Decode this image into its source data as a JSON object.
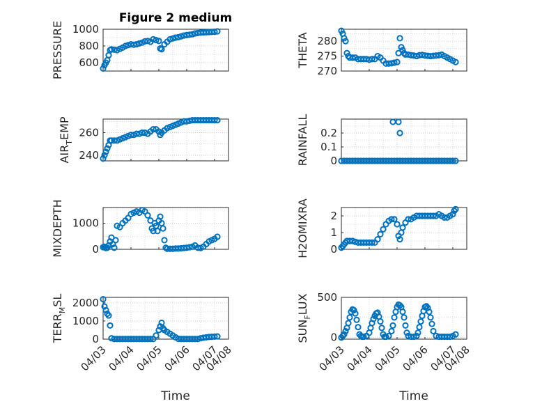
{
  "chart_data": [
    {
      "type": "scatter",
      "title": "Figure 2 medium",
      "ylabel": "PRESSURE",
      "ylim": [
        500,
        1000
      ],
      "yticks": [
        "600",
        "800",
        "1000"
      ],
      "xlim": [
        0,
        4.5
      ],
      "x": [
        0,
        0.05,
        0.1,
        0.15,
        0.2,
        0.25,
        0.3,
        0.4,
        0.5,
        0.6,
        0.7,
        0.8,
        0.9,
        1.0,
        1.1,
        1.2,
        1.3,
        1.4,
        1.5,
        1.6,
        1.7,
        1.8,
        1.9,
        2.0,
        2.05,
        2.1,
        2.2,
        2.3,
        2.4,
        2.5,
        2.6,
        2.7,
        2.8,
        2.9,
        3.0,
        3.1,
        3.2,
        3.3,
        3.4,
        3.5,
        3.6,
        3.7,
        3.8,
        3.9,
        4.0,
        4.1
      ],
      "y": [
        530,
        570,
        600,
        630,
        690,
        750,
        760,
        755,
        750,
        765,
        780,
        800,
        810,
        820,
        815,
        820,
        830,
        840,
        855,
        860,
        850,
        880,
        870,
        860,
        770,
        760,
        820,
        850,
        880,
        890,
        900,
        905,
        915,
        925,
        930,
        935,
        940,
        950,
        955,
        960,
        962,
        964,
        966,
        968,
        970,
        975
      ]
    },
    {
      "type": "scatter",
      "ylabel": "THETA",
      "ylim": [
        270,
        284
      ],
      "yticks": [
        "270",
        "275",
        "280"
      ],
      "xlim": [
        0,
        4.5
      ],
      "x": [
        0,
        0.05,
        0.1,
        0.15,
        0.2,
        0.25,
        0.3,
        0.4,
        0.5,
        0.6,
        0.7,
        0.8,
        0.9,
        1.0,
        1.1,
        1.2,
        1.3,
        1.4,
        1.5,
        1.6,
        1.7,
        1.8,
        1.9,
        2.0,
        2.05,
        2.1,
        2.15,
        2.2,
        2.25,
        2.3,
        2.4,
        2.5,
        2.6,
        2.7,
        2.8,
        2.9,
        3.0,
        3.1,
        3.2,
        3.3,
        3.4,
        3.5,
        3.6,
        3.7,
        3.8,
        3.9,
        4.0,
        4.1
      ],
      "y": [
        283.5,
        282.5,
        281,
        280,
        276,
        275,
        274.5,
        274.5,
        274.5,
        274,
        274,
        274,
        274,
        273.8,
        274,
        274,
        275,
        274.5,
        273.5,
        272.5,
        272.5,
        272.6,
        272.8,
        273,
        276,
        281,
        278,
        277,
        276,
        275.5,
        275.5,
        275.3,
        275.2,
        275,
        275.3,
        275.4,
        275.2,
        275.1,
        275,
        275.1,
        275.2,
        275.3,
        275.5,
        275,
        274.5,
        274,
        273.5,
        273
      ]
    },
    {
      "type": "scatter",
      "ylabel": "AIR_TEMP",
      "ylim": [
        235,
        272
      ],
      "yticks": [
        "240",
        "260"
      ],
      "xlim": [
        0,
        4.5
      ],
      "x": [
        0,
        0.05,
        0.1,
        0.15,
        0.2,
        0.25,
        0.3,
        0.4,
        0.5,
        0.6,
        0.7,
        0.8,
        0.9,
        1.0,
        1.1,
        1.2,
        1.3,
        1.4,
        1.5,
        1.6,
        1.7,
        1.8,
        1.9,
        2.0,
        2.05,
        2.1,
        2.2,
        2.3,
        2.4,
        2.5,
        2.6,
        2.7,
        2.8,
        2.9,
        3.0,
        3.1,
        3.2,
        3.3,
        3.4,
        3.5,
        3.6,
        3.7,
        3.8,
        3.9,
        4.0,
        4.1
      ],
      "y": [
        237,
        240,
        243,
        246,
        249,
        253,
        253,
        253,
        253,
        254,
        255,
        256,
        257,
        258,
        258,
        259,
        259,
        260,
        260,
        259,
        261,
        263,
        263,
        261,
        258,
        260,
        262,
        264,
        265,
        266,
        267,
        268,
        269,
        270,
        270,
        270.5,
        271,
        271,
        271,
        271,
        271,
        271,
        271,
        271,
        271,
        271
      ]
    },
    {
      "type": "scatter",
      "ylabel": "RAINFALL",
      "ylim": [
        0,
        0.3
      ],
      "yticks": [
        "0",
        "0.1",
        "0.2"
      ],
      "xlim": [
        0,
        4.5
      ],
      "x": [
        0,
        0.1,
        0.2,
        0.3,
        0.4,
        0.5,
        0.6,
        0.7,
        0.8,
        0.9,
        1.0,
        1.1,
        1.2,
        1.3,
        1.4,
        1.5,
        1.6,
        1.7,
        1.8,
        1.9,
        2.0,
        2.1,
        2.2,
        2.3,
        2.4,
        2.5,
        2.6,
        2.7,
        2.8,
        2.9,
        3.0,
        3.1,
        3.2,
        3.3,
        3.4,
        3.5,
        3.6,
        3.7,
        3.8,
        3.9,
        4.0,
        4.1,
        1.85,
        2.05,
        2.1
      ],
      "y": [
        0,
        0,
        0,
        0,
        0,
        0,
        0,
        0,
        0,
        0,
        0,
        0,
        0,
        0,
        0,
        0,
        0,
        0,
        0,
        0,
        0,
        0,
        0,
        0,
        0,
        0,
        0,
        0,
        0,
        0,
        0,
        0,
        0,
        0,
        0,
        0,
        0,
        0,
        0,
        0,
        0,
        0,
        0.28,
        0.28,
        0.2
      ]
    },
    {
      "type": "scatter",
      "ylabel": "MIXDEPTH",
      "ylim": [
        0,
        1600
      ],
      "yticks": [
        "0",
        "1000"
      ],
      "xlim": [
        0,
        4.5
      ],
      "x": [
        0,
        0.05,
        0.1,
        0.15,
        0.2,
        0.25,
        0.3,
        0.35,
        0.4,
        0.45,
        0.5,
        0.6,
        0.7,
        0.8,
        0.9,
        1.0,
        1.1,
        1.2,
        1.3,
        1.4,
        1.5,
        1.6,
        1.7,
        1.75,
        1.8,
        1.85,
        1.9,
        1.95,
        2.0,
        2.05,
        2.1,
        2.15,
        2.2,
        2.25,
        2.3,
        2.4,
        2.5,
        2.6,
        2.7,
        2.8,
        2.9,
        3.0,
        3.1,
        3.2,
        3.3,
        3.4,
        3.5,
        3.6,
        3.7,
        3.8,
        3.9,
        4.0,
        4.1
      ],
      "y": [
        80,
        100,
        50,
        60,
        150,
        300,
        450,
        200,
        60,
        350,
        900,
        850,
        1000,
        1100,
        1200,
        1350,
        1400,
        1450,
        1400,
        1500,
        1450,
        1300,
        1100,
        800,
        700,
        1000,
        900,
        700,
        1100,
        1250,
        1000,
        800,
        350,
        60,
        20,
        20,
        20,
        30,
        30,
        40,
        50,
        60,
        80,
        100,
        150,
        60,
        50,
        100,
        200,
        300,
        350,
        400,
        480
      ]
    },
    {
      "type": "scatter",
      "ylabel": "H2OMIXRA",
      "ylim": [
        0,
        2.5
      ],
      "yticks": [
        "0",
        "1",
        "2"
      ],
      "xlim": [
        0,
        4.5
      ],
      "x": [
        0,
        0.05,
        0.1,
        0.15,
        0.2,
        0.3,
        0.4,
        0.5,
        0.6,
        0.7,
        0.8,
        0.9,
        1.0,
        1.1,
        1.2,
        1.3,
        1.4,
        1.5,
        1.6,
        1.7,
        1.8,
        1.9,
        2.0,
        2.05,
        2.1,
        2.15,
        2.2,
        2.3,
        2.4,
        2.5,
        2.6,
        2.7,
        2.8,
        2.9,
        3.0,
        3.1,
        3.2,
        3.3,
        3.4,
        3.5,
        3.6,
        3.7,
        3.8,
        3.9,
        4.0,
        4.05,
        4.1
      ],
      "y": [
        0.1,
        0.2,
        0.3,
        0.4,
        0.5,
        0.5,
        0.5,
        0.45,
        0.4,
        0.4,
        0.4,
        0.4,
        0.4,
        0.4,
        0.4,
        0.6,
        0.9,
        1.2,
        1.5,
        1.7,
        1.8,
        1.8,
        1.5,
        0.8,
        0.6,
        1.0,
        1.3,
        1.6,
        1.8,
        1.8,
        1.9,
        2.0,
        2.0,
        2.0,
        2.0,
        2.0,
        2.0,
        2.0,
        2.0,
        2.1,
        2.0,
        1.9,
        1.9,
        2.0,
        2.1,
        2.3,
        2.4
      ]
    },
    {
      "type": "scatter",
      "ylabel": "TERR_MSL",
      "ylim": [
        0,
        2300
      ],
      "yticks": [
        "0",
        "1000",
        "2000"
      ],
      "xlim": [
        0,
        4.5
      ],
      "x": [
        0,
        0.05,
        0.1,
        0.15,
        0.2,
        0.25,
        0.3,
        0.4,
        0.5,
        0.6,
        0.7,
        0.8,
        0.9,
        1.0,
        1.1,
        1.2,
        1.3,
        1.4,
        1.5,
        1.6,
        1.7,
        1.8,
        1.9,
        2.0,
        2.05,
        2.1,
        2.15,
        2.2,
        2.3,
        2.4,
        2.5,
        2.6,
        2.7,
        2.8,
        2.9,
        3.0,
        3.1,
        3.2,
        3.3,
        3.4,
        3.5,
        3.6,
        3.7,
        3.8,
        3.9,
        4.0,
        4.1
      ],
      "y": [
        2200,
        1800,
        1600,
        1400,
        1300,
        750,
        50,
        10,
        10,
        10,
        10,
        10,
        10,
        10,
        10,
        10,
        10,
        10,
        10,
        10,
        10,
        10,
        200,
        500,
        700,
        900,
        600,
        500,
        400,
        300,
        200,
        100,
        20,
        10,
        10,
        10,
        10,
        10,
        10,
        10,
        50,
        80,
        100,
        120,
        130,
        140,
        150
      ]
    },
    {
      "type": "scatter",
      "ylabel": "SUN_FLUX",
      "ylim": [
        -20,
        500
      ],
      "yticks": [
        "0",
        "500"
      ],
      "xlim": [
        0,
        4.5
      ],
      "x": [
        0,
        0.05,
        0.1,
        0.15,
        0.2,
        0.25,
        0.3,
        0.35,
        0.4,
        0.45,
        0.5,
        0.55,
        0.6,
        0.65,
        0.7,
        0.75,
        0.8,
        0.9,
        1.0,
        1.05,
        1.1,
        1.15,
        1.2,
        1.25,
        1.3,
        1.35,
        1.4,
        1.45,
        1.5,
        1.55,
        1.6,
        1.7,
        1.8,
        1.85,
        1.9,
        1.95,
        2.0,
        2.05,
        2.1,
        2.15,
        2.2,
        2.25,
        2.3,
        2.35,
        2.4,
        2.5,
        2.6,
        2.7,
        2.75,
        2.8,
        2.85,
        2.9,
        2.95,
        3.0,
        3.05,
        3.1,
        3.15,
        3.2,
        3.25,
        3.3,
        3.4,
        3.5,
        3.6,
        3.7,
        3.8,
        3.9,
        4.0,
        4.1
      ],
      "y": [
        0,
        20,
        40,
        80,
        120,
        180,
        250,
        320,
        350,
        340,
        300,
        220,
        130,
        40,
        20,
        10,
        10,
        20,
        60,
        120,
        180,
        230,
        270,
        300,
        310,
        260,
        200,
        120,
        40,
        10,
        10,
        20,
        80,
        150,
        250,
        320,
        380,
        410,
        400,
        380,
        320,
        250,
        150,
        60,
        20,
        10,
        10,
        20,
        60,
        130,
        200,
        270,
        330,
        380,
        390,
        370,
        320,
        250,
        170,
        80,
        20,
        10,
        10,
        10,
        10,
        10,
        20,
        40
      ]
    }
  ],
  "shared": {
    "xtick_labels": [
      "04/03",
      "04/04",
      "04/05",
      "04/06",
      "04/07",
      "04/08"
    ],
    "xlabel": "Time",
    "marker_color": "#0072BD"
  }
}
